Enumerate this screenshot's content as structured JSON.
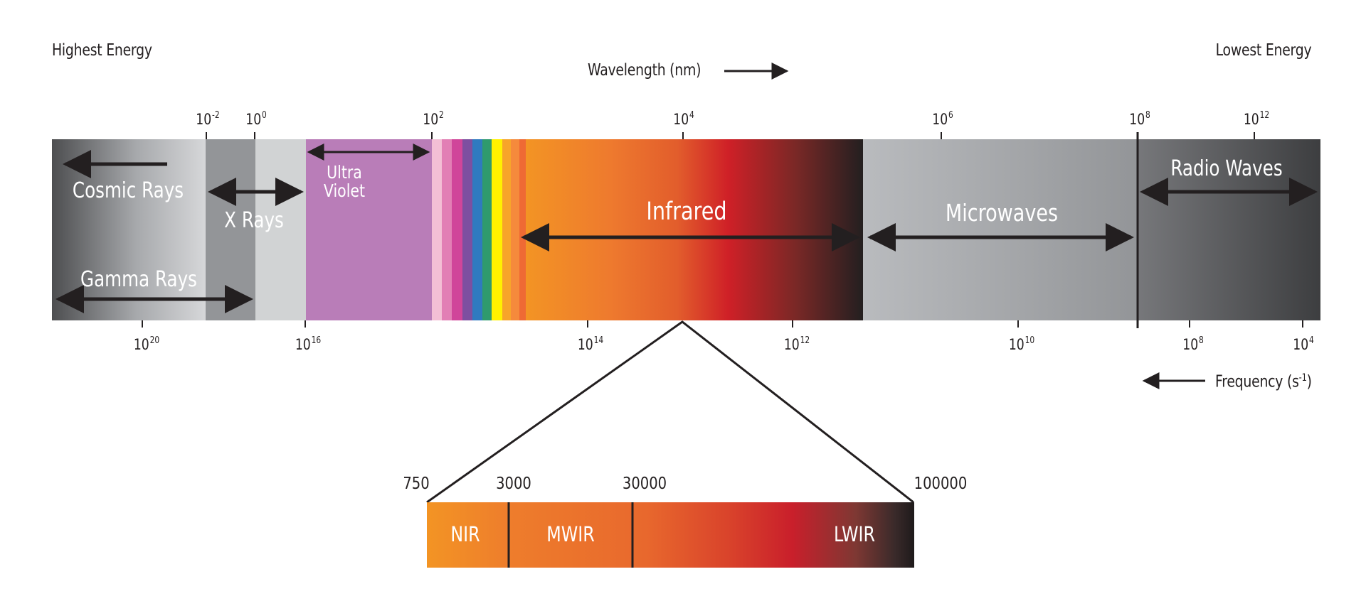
{
  "header": {
    "highest_energy": "Highest Energy",
    "lowest_energy": "Lowest Energy",
    "wavelength_label": "Wavelength (nm)",
    "frequency_label": "Frequency (s",
    "frequency_exp": "-1",
    "frequency_close": ")"
  },
  "wavelength_ticks": [
    {
      "base": "10",
      "exp": "-2"
    },
    {
      "base": "10",
      "exp": "0"
    },
    {
      "base": "10",
      "exp": "2"
    },
    {
      "base": "10",
      "exp": "4"
    },
    {
      "base": "10",
      "exp": "6"
    },
    {
      "base": "10",
      "exp": "8"
    },
    {
      "base": "10",
      "exp": "12"
    }
  ],
  "frequency_ticks": [
    {
      "base": "10",
      "exp": "20"
    },
    {
      "base": "10",
      "exp": "16"
    },
    {
      "base": "10",
      "exp": "14"
    },
    {
      "base": "10",
      "exp": "12"
    },
    {
      "base": "10",
      "exp": "10"
    },
    {
      "base": "10",
      "exp": "8"
    },
    {
      "base": "10",
      "exp": "4"
    }
  ],
  "bands": {
    "cosmic_rays": "Cosmic Rays",
    "x_rays": "X Rays",
    "gamma_rays": "Gamma Rays",
    "ultraviolet_line1": "Ultra",
    "ultraviolet_line2": "Violet",
    "infrared": "Infrared",
    "microwaves": "Microwaves",
    "radio_waves": "Radio Waves"
  },
  "infrared_detail": {
    "ticks": [
      "750",
      "3000",
      "30000",
      "100000"
    ],
    "regions": [
      "NIR",
      "MWIR",
      "LWIR"
    ]
  },
  "colors": {
    "cosmic_gradient": [
      "#4a4b4d",
      "#c9cacc"
    ],
    "xray_gray": "#939598",
    "light_gray": "#d1d3d4",
    "ultraviolet": "#b97db8",
    "infrared_gradient": [
      "#f39424",
      "#cf2027",
      "#231f20"
    ],
    "microwave_gray": "#a7a9ac",
    "radio_gradient": [
      "#6d6e71",
      "#414244"
    ],
    "arrow": "#231f20"
  }
}
